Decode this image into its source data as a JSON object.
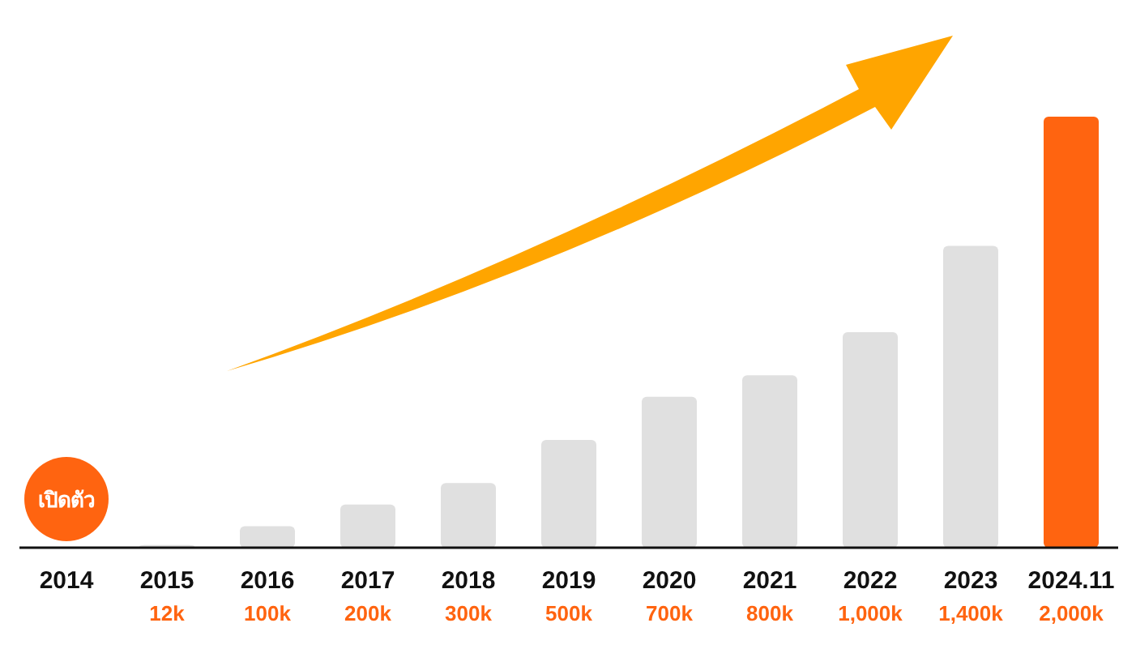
{
  "chart_data": {
    "type": "bar",
    "categories": [
      "2014",
      "2015",
      "2016",
      "2017",
      "2018",
      "2019",
      "2020",
      "2021",
      "2022",
      "2023",
      "2024.11"
    ],
    "values": [
      null,
      12,
      100,
      200,
      300,
      500,
      700,
      800,
      1000,
      1400,
      2000
    ],
    "colors": [
      null,
      "#e0e0e0",
      "#e0e0e0",
      "#e0e0e0",
      "#e0e0e0",
      "#e0e0e0",
      "#e0e0e0",
      "#e0e0e0",
      "#e0e0e0",
      "#e0e0e0",
      "#ff6410"
    ],
    "value_labels": [
      null,
      "12k",
      "100k",
      "200k",
      "300k",
      "500k",
      "700k",
      "800k",
      "1,000k",
      "1,400k",
      "2,000k"
    ],
    "annotations": [
      "เปิดตัว"
    ]
  }
}
